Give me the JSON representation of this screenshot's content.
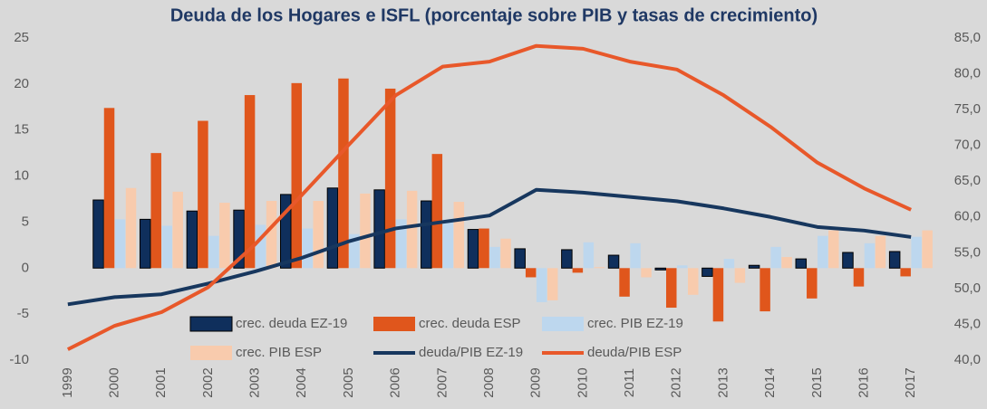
{
  "chart_data": {
    "type": "bar-line",
    "title": "Deuda de los Hogares e ISFL (porcentaje sobre PIB y tasas de crecimiento)",
    "categories": [
      "1999",
      "2000",
      "2001",
      "2002",
      "2003",
      "2004",
      "2005",
      "2006",
      "2007",
      "2008",
      "2009",
      "2010",
      "2011",
      "2012",
      "2013",
      "2014",
      "2015",
      "2016",
      "2017"
    ],
    "ylim": [
      -10,
      25
    ],
    "yticks": [
      -10,
      -5,
      0,
      5,
      10,
      15,
      20,
      25
    ],
    "y2lim": [
      40,
      85
    ],
    "y2ticks": [
      {
        "value": 40,
        "label": "40,0"
      },
      {
        "value": 45,
        "label": "45,0"
      },
      {
        "value": 50,
        "label": "50,0"
      },
      {
        "value": 55,
        "label": "55,0"
      },
      {
        "value": 60,
        "label": "60,0"
      },
      {
        "value": 65,
        "label": "65,0"
      },
      {
        "value": 70,
        "label": "70,0"
      },
      {
        "value": 75,
        "label": "75,0"
      },
      {
        "value": 80,
        "label": "80,0"
      },
      {
        "value": 85,
        "label": "85,0"
      }
    ],
    "grid": false,
    "legend": "lower center",
    "series": [
      {
        "name": "crec. deuda EZ-19",
        "type": "bar",
        "color": "#0f2f5c",
        "values": [
          null,
          7.4,
          5.3,
          6.2,
          6.3,
          8.0,
          8.7,
          8.5,
          7.3,
          4.2,
          2.1,
          2.0,
          1.4,
          -0.2,
          -0.9,
          0.3,
          1.0,
          1.7,
          1.8
        ]
      },
      {
        "name": "crec. deuda ESP",
        "type": "bar",
        "color": "#e0561c",
        "values": [
          null,
          17.4,
          12.5,
          16.0,
          18.8,
          20.1,
          20.6,
          19.5,
          12.4,
          4.3,
          -1.0,
          -0.5,
          -3.1,
          -4.3,
          -5.8,
          -4.7,
          -3.3,
          -2.0,
          -0.9
        ]
      },
      {
        "name": "crec. PIB EZ-19",
        "type": "bar",
        "color": "#bdd7ee",
        "values": [
          null,
          5.3,
          4.6,
          3.5,
          4.7,
          4.3,
          3.7,
          5.3,
          5.0,
          2.3,
          -3.7,
          2.8,
          2.7,
          0.3,
          1.0,
          2.3,
          3.5,
          2.7,
          3.4
        ]
      },
      {
        "name": "crec. PIB ESP",
        "type": "bar",
        "color": "#f8cbad",
        "values": [
          null,
          8.7,
          8.3,
          7.1,
          7.3,
          7.3,
          8.1,
          8.4,
          7.2,
          3.2,
          -3.5,
          0.1,
          -1.0,
          -2.9,
          -1.6,
          1.2,
          4.1,
          3.5,
          4.1
        ]
      },
      {
        "name": "deuda/PIB EZ-19",
        "type": "line",
        "axis": "y2",
        "color": "#17375e",
        "values": [
          47.8,
          48.8,
          49.2,
          50.7,
          52.4,
          54.3,
          56.6,
          58.4,
          59.3,
          60.2,
          63.8,
          63.4,
          62.8,
          62.2,
          61.2,
          60.0,
          58.6,
          58.1,
          57.2
        ]
      },
      {
        "name": "deuda/PIB ESP",
        "type": "line",
        "axis": "y2",
        "color": "#e8582a",
        "values": [
          41.5,
          44.8,
          46.7,
          50.2,
          56.2,
          63.1,
          70.1,
          77.0,
          81.0,
          81.7,
          83.9,
          83.5,
          81.7,
          80.6,
          77.0,
          72.6,
          67.6,
          64.0,
          61.0
        ]
      }
    ]
  }
}
